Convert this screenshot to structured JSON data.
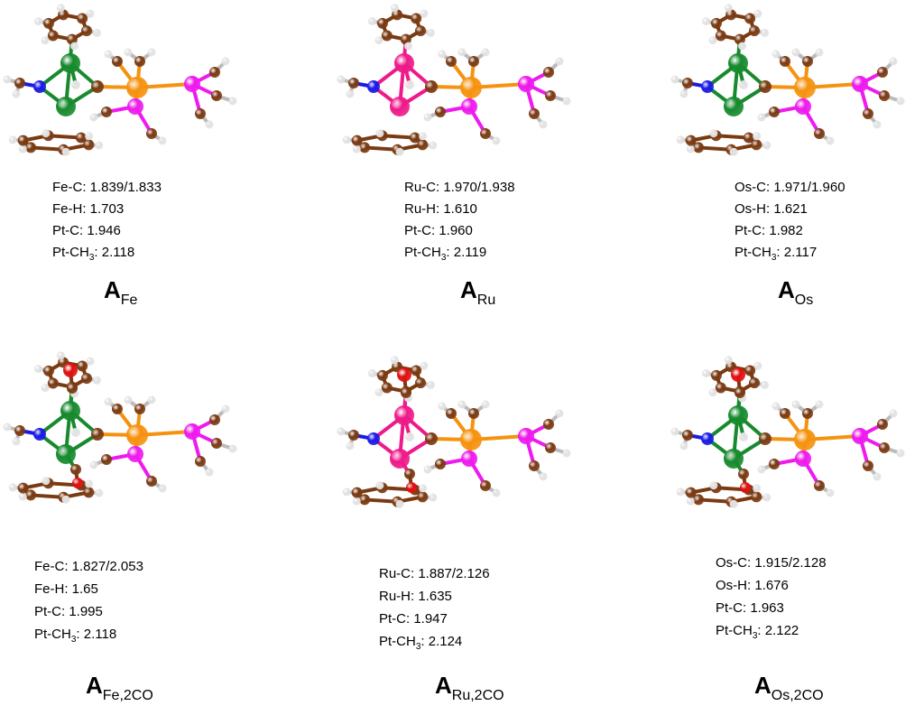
{
  "panels": [
    {
      "lines": [
        "Fe-C: 1.839/1.833",
        "Fe-H: 1.703",
        "Pt-C: 1.946",
        {
          "pre": "Pt-CH",
          "sub": "3",
          "post": ": 2.118"
        }
      ],
      "label": {
        "main": "A",
        "sub": "Fe"
      }
    },
    {
      "lines": [
        "Ru-C: 1.970/1.938",
        "Ru-H: 1.610",
        "Pt-C: 1.960",
        {
          "pre": "Pt-CH",
          "sub": "3",
          "post": ": 2.119"
        }
      ],
      "label": {
        "main": "A",
        "sub": "Ru"
      }
    },
    {
      "lines": [
        "Os-C: 1.971/1.960",
        "Os-H: 1.621",
        "Pt-C: 1.982",
        {
          "pre": "Pt-CH",
          "sub": "3",
          "post": ": 2.117"
        }
      ],
      "label": {
        "main": "A",
        "sub": "Os"
      }
    },
    {
      "lines": [
        "Fe-C: 1.827/2.053",
        "Fe-H: 1.65",
        "Pt-C: 1.995",
        {
          "pre": "Pt-CH",
          "sub": "3",
          "post": ": 2.118"
        }
      ],
      "label": {
        "main": "A",
        "sub": "Fe,2CO"
      }
    },
    {
      "lines": [
        "Ru-C: 1.887/2.126",
        "Ru-H: 1.635",
        "Pt-C: 1.947",
        {
          "pre": "Pt-CH",
          "sub": "3",
          "post": ": 2.124"
        }
      ],
      "label": {
        "main": "A",
        "sub": "Ru,2CO"
      }
    },
    {
      "lines": [
        "Os-C: 1.915/2.128",
        "Os-H: 1.676",
        "Pt-C: 1.963",
        {
          "pre": "Pt-CH",
          "sub": "3",
          "post": ": 2.122"
        }
      ],
      "label": {
        "main": "A",
        "sub": "Os,2CO"
      }
    }
  ]
}
